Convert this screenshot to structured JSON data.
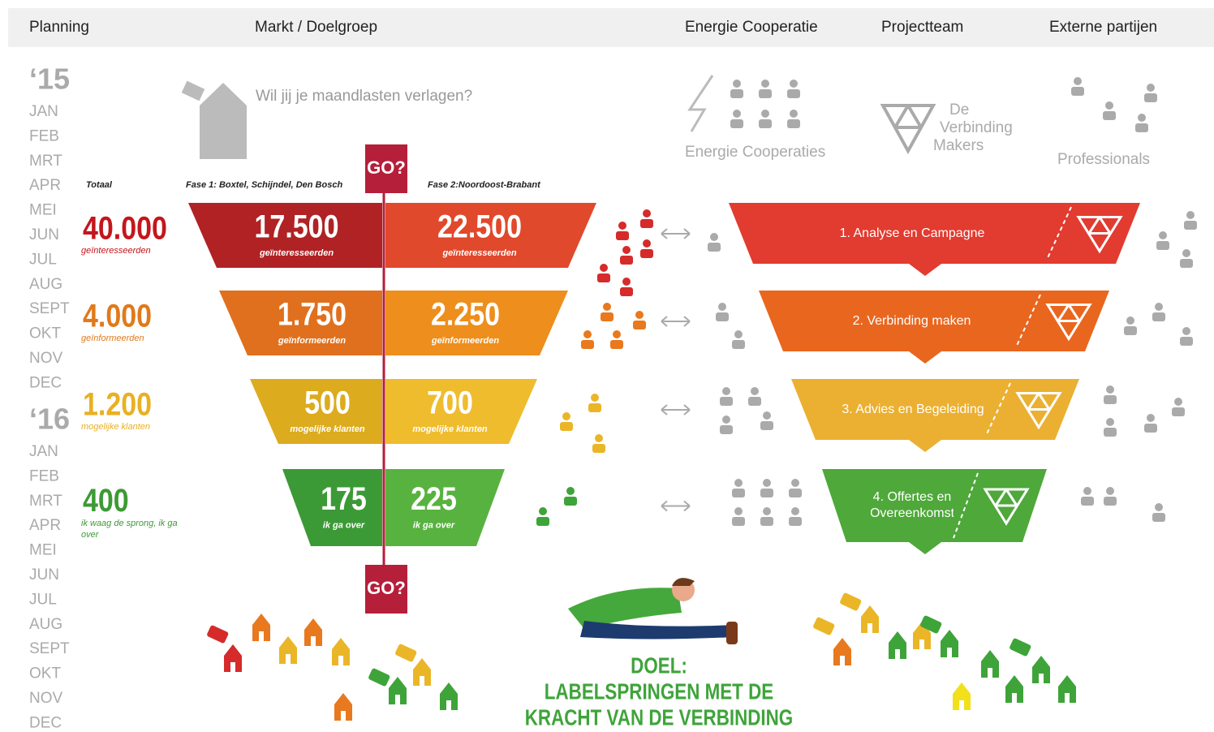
{
  "header": {
    "columns": [
      "Planning",
      "Markt / Doelgroep",
      "Energie Cooperatie",
      "Projectteam",
      "Externe partijen"
    ]
  },
  "timeline": {
    "years": [
      {
        "label": "‘15",
        "months": [
          "JAN",
          "FEB",
          "MRT",
          "APR",
          "MEI",
          "JUN",
          "JUL",
          "AUG",
          "SEPT",
          "OKT",
          "NOV",
          "DEC"
        ]
      },
      {
        "label": "‘16",
        "months": [
          "JAN",
          "FEB",
          "MRT",
          "APR",
          "MEI",
          "JUN",
          "JUL",
          "AUG",
          "SEPT",
          "OKT",
          "NOV",
          "DEC"
        ]
      }
    ]
  },
  "campaign": {
    "headline": "Wil jij je maandlasten verlagen?"
  },
  "go_labels": [
    "GO?",
    "GO?"
  ],
  "funnel": {
    "total_label": "Totaal",
    "phase1": "Fase 1: Boxtel, Schijndel, Den Bosch",
    "phase2": "Fase 2:Noordoost-Brabant",
    "rows": [
      {
        "total": "40.000",
        "total_caption": "geïnteresseerden",
        "left": "17.500",
        "left_caption": "geïnteresseerden",
        "right": "22.500",
        "right_caption": "geïnteresseerden"
      },
      {
        "total": "4.000",
        "total_caption": "geïnformeerden",
        "left": "1.750",
        "left_caption": "geïnformeerden",
        "right": "2.250",
        "right_caption": "geïnformeerden"
      },
      {
        "total": "1.200",
        "total_caption": "mogelijke klanten",
        "left": "500",
        "left_caption": "mogelijke klanten",
        "right": "700",
        "right_caption": "mogelijke klanten"
      },
      {
        "total": "400",
        "total_caption": "ik waag de sprong, ik ga over",
        "left": "175",
        "left_caption": "ik ga over",
        "right": "225",
        "right_caption": "ik ga over"
      }
    ]
  },
  "parties": {
    "energie": "Energie Cooperaties",
    "projectteam": [
      "De",
      "Verbinding",
      "Makers"
    ],
    "externe": "Professionals"
  },
  "steps": [
    "1. Analyse en Campagne",
    "2. Verbinding maken",
    "3. Advies en Begeleiding",
    "4. Offertes en Overeenkomst"
  ],
  "goal": [
    "DOEL:",
    "LABELSPRINGEN MET DE",
    "KRACHT VAN DE VERBINDING"
  ]
}
